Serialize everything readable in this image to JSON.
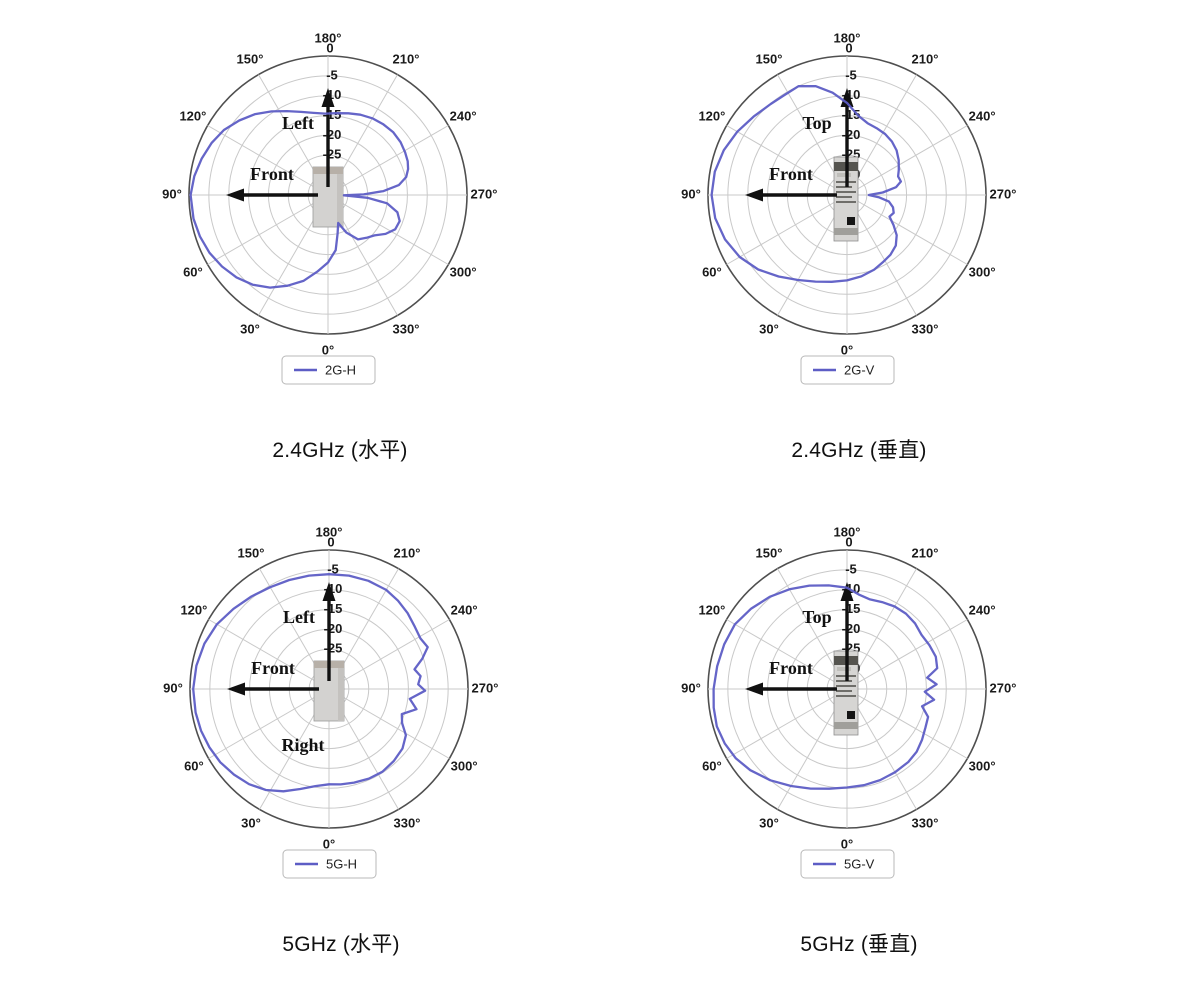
{
  "style": {
    "curve_color": "#5d5dc5",
    "grid_color": "#c9c9c9",
    "outer_ring_color": "#4f4f4f",
    "arrow_color": "#111111",
    "tick_label_color": "#1a1a1a",
    "legend_border_color": "#b8b8b8"
  },
  "chart_data": {
    "type": "line",
    "projection": "polar",
    "axis": {
      "rlim": [
        -35,
        0
      ],
      "radial_tick_labels": [
        "0",
        "-5",
        "-10",
        "-15",
        "-20",
        "-25",
        "-30"
      ],
      "radial_tick_values": [
        0,
        -5,
        -10,
        -15,
        -20,
        -25,
        -30
      ],
      "angle_ticks": [
        {
          "angle": 0,
          "label": "0°"
        },
        {
          "angle": 30,
          "label": "30°"
        },
        {
          "angle": 60,
          "label": "60°"
        },
        {
          "angle": 90,
          "label": "90°"
        },
        {
          "angle": 120,
          "label": "120°"
        },
        {
          "angle": 150,
          "label": "150°"
        },
        {
          "angle": 180,
          "label": "180°"
        },
        {
          "angle": 210,
          "label": "210°"
        },
        {
          "angle": 240,
          "label": "240°"
        },
        {
          "angle": 270,
          "label": "270°"
        },
        {
          "angle": 300,
          "label": "300°"
        },
        {
          "angle": 330,
          "label": "330°"
        }
      ],
      "angle_zero_position": "bottom",
      "grid": true
    },
    "charts": [
      {
        "caption": "2.4GHz (水平)",
        "legend_label": "2G-H",
        "device": "front",
        "annotations": {
          "up_label": "Left",
          "front_label": "Front",
          "extra_label": ""
        },
        "points": [
          [
            0,
            -18
          ],
          [
            8,
            -15.5
          ],
          [
            16,
            -12.5
          ],
          [
            24,
            -10
          ],
          [
            32,
            -7.5
          ],
          [
            40,
            -5.5
          ],
          [
            48,
            -4
          ],
          [
            56,
            -2.8
          ],
          [
            64,
            -1.8
          ],
          [
            72,
            -1.1
          ],
          [
            80,
            -0.6
          ],
          [
            90,
            -0.4
          ],
          [
            98,
            -1
          ],
          [
            106,
            -1.9
          ],
          [
            114,
            -2.9
          ],
          [
            122,
            -4.1
          ],
          [
            130,
            -5.8
          ],
          [
            138,
            -7.6
          ],
          [
            146,
            -9.6
          ],
          [
            154,
            -11.5
          ],
          [
            162,
            -13
          ],
          [
            170,
            -14
          ],
          [
            178,
            -14.5
          ],
          [
            186,
            -14.3
          ],
          [
            194,
            -13.8
          ],
          [
            202,
            -13.2
          ],
          [
            210,
            -12.7
          ],
          [
            218,
            -12.4
          ],
          [
            226,
            -12.2
          ],
          [
            234,
            -12.4
          ],
          [
            241,
            -12.8
          ],
          [
            247,
            -13.2
          ],
          [
            252,
            -13.8
          ],
          [
            257,
            -14.8
          ],
          [
            262,
            -17
          ],
          [
            266,
            -21
          ],
          [
            269,
            -26
          ],
          [
            271,
            -31
          ],
          [
            274,
            -25
          ],
          [
            278,
            -20
          ],
          [
            284,
            -17
          ],
          [
            290,
            -15.8
          ],
          [
            297,
            -16
          ],
          [
            304,
            -17.5
          ],
          [
            311,
            -19.5
          ],
          [
            318,
            -20.5
          ],
          [
            326,
            -21.5
          ],
          [
            334,
            -24.5
          ],
          [
            340,
            -27.5
          ],
          [
            346,
            -25
          ],
          [
            352,
            -21
          ]
        ]
      },
      {
        "caption": "2.4GHz (垂直)",
        "legend_label": "2G-V",
        "device": "side",
        "annotations": {
          "up_label": "Top",
          "front_label": "Front",
          "extra_label": ""
        },
        "points": [
          [
            0,
            -13.5
          ],
          [
            10,
            -12.8
          ],
          [
            20,
            -11.8
          ],
          [
            30,
            -10.3
          ],
          [
            40,
            -8.2
          ],
          [
            50,
            -5.8
          ],
          [
            60,
            -3.8
          ],
          [
            70,
            -2.3
          ],
          [
            80,
            -1.3
          ],
          [
            90,
            -0.9
          ],
          [
            100,
            -1.2
          ],
          [
            110,
            -2
          ],
          [
            120,
            -3.1
          ],
          [
            130,
            -4.3
          ],
          [
            140,
            -5.1
          ],
          [
            148,
            -5.3
          ],
          [
            156,
            -5
          ],
          [
            164,
            -6.5
          ],
          [
            172,
            -9
          ],
          [
            180,
            -11.8
          ],
          [
            188,
            -14.8
          ],
          [
            196,
            -16.2
          ],
          [
            204,
            -16.6
          ],
          [
            212,
            -16.9
          ],
          [
            220,
            -17.4
          ],
          [
            228,
            -18.2
          ],
          [
            236,
            -19.3
          ],
          [
            244,
            -20.5
          ],
          [
            250,
            -21.3
          ],
          [
            256,
            -21
          ],
          [
            261,
            -22.5
          ],
          [
            266,
            -26
          ],
          [
            270,
            -29.5
          ],
          [
            274,
            -27
          ],
          [
            279,
            -24.3
          ],
          [
            285,
            -23
          ],
          [
            291,
            -22.4
          ],
          [
            297,
            -23
          ],
          [
            303,
            -21
          ],
          [
            309,
            -18.9
          ],
          [
            316,
            -17.3
          ],
          [
            324,
            -16.4
          ],
          [
            332,
            -15.8
          ],
          [
            340,
            -15
          ],
          [
            350,
            -14.2
          ]
        ]
      },
      {
        "caption": "5GHz (水平)",
        "legend_label": "5G-H",
        "device": "front",
        "annotations": {
          "up_label": "Left",
          "front_label": "Front",
          "extra_label": "Right"
        },
        "points": [
          [
            0,
            -11
          ],
          [
            8,
            -10.3
          ],
          [
            16,
            -8.8
          ],
          [
            24,
            -6.8
          ],
          [
            32,
            -5
          ],
          [
            40,
            -3.7
          ],
          [
            48,
            -2.8
          ],
          [
            56,
            -2
          ],
          [
            64,
            -1.5
          ],
          [
            72,
            -1.1
          ],
          [
            80,
            -0.9
          ],
          [
            90,
            -0.8
          ],
          [
            100,
            -1.1
          ],
          [
            110,
            -1.6
          ],
          [
            120,
            -2.4
          ],
          [
            130,
            -3.6
          ],
          [
            140,
            -4.6
          ],
          [
            150,
            -5.4
          ],
          [
            160,
            -5.8
          ],
          [
            170,
            -6
          ],
          [
            180,
            -6.1
          ],
          [
            190,
            -6
          ],
          [
            200,
            -6
          ],
          [
            210,
            -6.2
          ],
          [
            218,
            -6.8
          ],
          [
            226,
            -7.5
          ],
          [
            234,
            -8.3
          ],
          [
            241,
            -8.7
          ],
          [
            247,
            -8
          ],
          [
            252,
            -10.3
          ],
          [
            257,
            -12.9
          ],
          [
            262,
            -11.7
          ],
          [
            267,
            -12.5
          ],
          [
            271,
            -10.8
          ],
          [
            277,
            -14.5
          ],
          [
            283,
            -12.4
          ],
          [
            289,
            -15.6
          ],
          [
            295,
            -14.7
          ],
          [
            301,
            -12.4
          ],
          [
            309,
            -11.2
          ],
          [
            318,
            -10.6
          ],
          [
            327,
            -10.2
          ],
          [
            336,
            -10.3
          ],
          [
            345,
            -10.6
          ],
          [
            353,
            -10.8
          ]
        ]
      },
      {
        "caption": "5GHz (垂直)",
        "legend_label": "5G-V",
        "device": "side",
        "annotations": {
          "up_label": "Top",
          "front_label": "Front",
          "extra_label": ""
        },
        "points": [
          [
            0,
            -10.2
          ],
          [
            10,
            -9.5
          ],
          [
            20,
            -8.3
          ],
          [
            30,
            -6.8
          ],
          [
            40,
            -5
          ],
          [
            50,
            -3.2
          ],
          [
            58,
            -2
          ],
          [
            66,
            -1.3
          ],
          [
            74,
            -0.9
          ],
          [
            82,
            -1.1
          ],
          [
            90,
            -1.4
          ],
          [
            100,
            -1.8
          ],
          [
            110,
            -2.1
          ],
          [
            120,
            -2.4
          ],
          [
            130,
            -3.5
          ],
          [
            140,
            -4.7
          ],
          [
            150,
            -6
          ],
          [
            160,
            -7.3
          ],
          [
            170,
            -8.5
          ],
          [
            180,
            -9.5
          ],
          [
            187,
            -11
          ],
          [
            194,
            -11.7
          ],
          [
            202,
            -11.4
          ],
          [
            210,
            -11
          ],
          [
            218,
            -10.9
          ],
          [
            226,
            -11.2
          ],
          [
            234,
            -11.8
          ],
          [
            242,
            -11.5
          ],
          [
            250,
            -11.2
          ],
          [
            257,
            -11.7
          ],
          [
            262,
            -14.6
          ],
          [
            267,
            -12.4
          ],
          [
            272,
            -15.4
          ],
          [
            277,
            -12.9
          ],
          [
            283,
            -15.6
          ],
          [
            289,
            -13.4
          ],
          [
            296,
            -13
          ],
          [
            304,
            -12.2
          ],
          [
            312,
            -11.4
          ],
          [
            320,
            -11
          ],
          [
            330,
            -10.8
          ],
          [
            340,
            -10.6
          ],
          [
            350,
            -10.4
          ]
        ]
      }
    ]
  }
}
